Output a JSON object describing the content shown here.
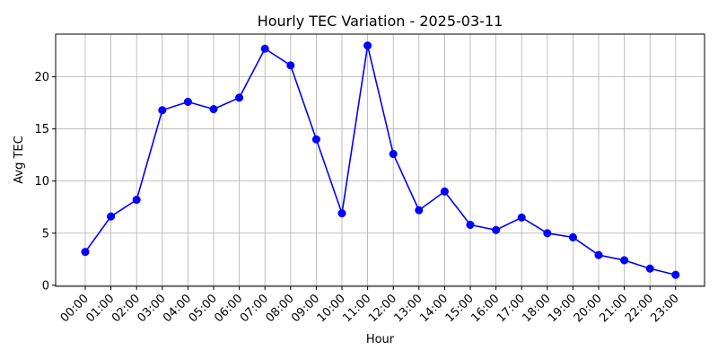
{
  "chart_data": {
    "type": "line",
    "title": "Hourly TEC Variation - 2025-03-11",
    "xlabel": "Hour",
    "ylabel": "Avg TEC",
    "categories": [
      "00:00",
      "01:00",
      "02:00",
      "03:00",
      "04:00",
      "05:00",
      "06:00",
      "07:00",
      "08:00",
      "09:00",
      "10:00",
      "11:00",
      "12:00",
      "13:00",
      "14:00",
      "15:00",
      "16:00",
      "17:00",
      "18:00",
      "19:00",
      "20:00",
      "21:00",
      "22:00",
      "23:00"
    ],
    "series": [
      {
        "color": "#0000ff",
        "values": [
          3.2,
          6.6,
          8.2,
          16.8,
          17.6,
          16.9,
          18.0,
          22.7,
          21.1,
          14.0,
          6.9,
          23.0,
          12.6,
          7.2,
          9.0,
          5.8,
          5.3,
          6.5,
          5.0,
          4.6,
          2.9,
          2.4,
          1.6,
          1.0
        ]
      }
    ],
    "yticks": [
      0,
      5,
      10,
      15,
      20
    ],
    "ylim": [
      -0.1,
      24.1
    ],
    "grid": true,
    "legend": "none"
  }
}
